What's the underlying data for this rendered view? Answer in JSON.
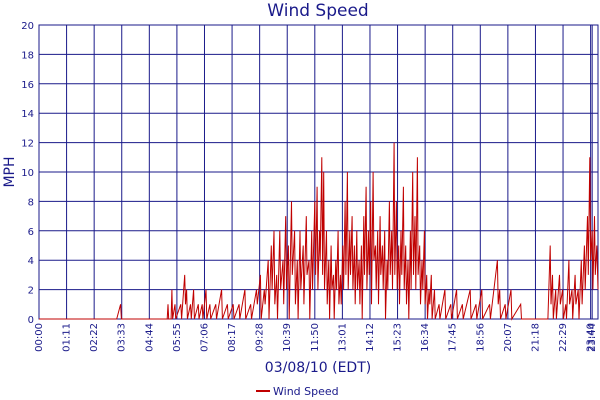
{
  "chart_data": {
    "type": "line",
    "title": "Wind Speed",
    "xlabel": "03/08/10 (EDT)",
    "ylabel": "MPH",
    "ylim": [
      0,
      20
    ],
    "yticks": [
      0,
      2,
      4,
      6,
      8,
      10,
      12,
      14,
      16,
      18,
      20
    ],
    "xlim_minutes": [
      0,
      1439
    ],
    "xticks": [
      "00:00",
      "01:11",
      "02:22",
      "03:33",
      "04:44",
      "05:55",
      "07:06",
      "08:17",
      "09:28",
      "10:39",
      "11:50",
      "13:01",
      "14:12",
      "15:23",
      "16:34",
      "17:45",
      "18:56",
      "20:07",
      "21:18",
      "22:29",
      "23:40",
      "23:44"
    ],
    "grid": true,
    "legend_position": "bottom-center",
    "series": [
      {
        "name": "Wind Speed",
        "color": "#c00000",
        "points": [
          [
            0,
            0
          ],
          [
            60,
            0
          ],
          [
            120,
            0
          ],
          [
            200,
            0
          ],
          [
            210,
            1
          ],
          [
            212,
            0
          ],
          [
            300,
            0
          ],
          [
            330,
            0
          ],
          [
            332,
            1
          ],
          [
            334,
            0
          ],
          [
            340,
            0
          ],
          [
            342,
            2
          ],
          [
            344,
            0
          ],
          [
            350,
            1
          ],
          [
            352,
            0
          ],
          [
            365,
            1
          ],
          [
            367,
            0
          ],
          [
            375,
            3
          ],
          [
            377,
            1
          ],
          [
            380,
            2
          ],
          [
            382,
            0
          ],
          [
            390,
            1
          ],
          [
            392,
            0
          ],
          [
            398,
            2
          ],
          [
            400,
            0
          ],
          [
            410,
            1
          ],
          [
            412,
            0
          ],
          [
            420,
            1
          ],
          [
            422,
            0
          ],
          [
            430,
            2
          ],
          [
            432,
            0
          ],
          [
            440,
            1
          ],
          [
            442,
            0
          ],
          [
            455,
            1
          ],
          [
            457,
            0
          ],
          [
            470,
            2
          ],
          [
            472,
            0
          ],
          [
            485,
            1
          ],
          [
            487,
            0
          ],
          [
            500,
            1
          ],
          [
            502,
            0
          ],
          [
            515,
            1
          ],
          [
            517,
            0
          ],
          [
            530,
            2
          ],
          [
            532,
            0
          ],
          [
            545,
            1
          ],
          [
            547,
            0
          ],
          [
            560,
            2
          ],
          [
            562,
            1
          ],
          [
            570,
            3
          ],
          [
            572,
            0
          ],
          [
            580,
            2
          ],
          [
            582,
            1
          ],
          [
            590,
            4
          ],
          [
            592,
            0
          ],
          [
            598,
            5
          ],
          [
            600,
            2
          ],
          [
            605,
            6
          ],
          [
            607,
            1
          ],
          [
            612,
            3
          ],
          [
            614,
            0
          ],
          [
            620,
            6
          ],
          [
            622,
            2
          ],
          [
            628,
            4
          ],
          [
            630,
            1
          ],
          [
            635,
            7
          ],
          [
            637,
            2
          ],
          [
            642,
            5
          ],
          [
            644,
            0
          ],
          [
            650,
            8
          ],
          [
            652,
            3
          ],
          [
            658,
            6
          ],
          [
            660,
            1
          ],
          [
            665,
            4
          ],
          [
            667,
            0
          ],
          [
            672,
            6
          ],
          [
            674,
            2
          ],
          [
            680,
            5
          ],
          [
            682,
            1
          ],
          [
            688,
            7
          ],
          [
            690,
            3
          ],
          [
            695,
            4
          ],
          [
            697,
            0
          ],
          [
            702,
            6
          ],
          [
            704,
            2
          ],
          [
            710,
            8
          ],
          [
            712,
            3
          ],
          [
            716,
            9
          ],
          [
            718,
            2
          ],
          [
            722,
            6
          ],
          [
            724,
            4
          ],
          [
            728,
            11
          ],
          [
            730,
            3
          ],
          [
            733,
            10
          ],
          [
            735,
            2
          ],
          [
            740,
            6
          ],
          [
            742,
            1
          ],
          [
            746,
            4
          ],
          [
            748,
            0
          ],
          [
            752,
            5
          ],
          [
            754,
            2
          ],
          [
            758,
            3
          ],
          [
            760,
            0
          ],
          [
            764,
            4
          ],
          [
            766,
            2
          ],
          [
            770,
            6
          ],
          [
            772,
            1
          ],
          [
            776,
            3
          ],
          [
            778,
            1
          ],
          [
            782,
            5
          ],
          [
            784,
            2
          ],
          [
            788,
            8
          ],
          [
            790,
            3
          ],
          [
            794,
            10
          ],
          [
            796,
            2
          ],
          [
            800,
            6
          ],
          [
            802,
            3
          ],
          [
            806,
            7
          ],
          [
            808,
            2
          ],
          [
            812,
            5
          ],
          [
            814,
            1
          ],
          [
            818,
            6
          ],
          [
            820,
            2
          ],
          [
            824,
            4
          ],
          [
            826,
            1
          ],
          [
            830,
            5
          ],
          [
            832,
            0
          ],
          [
            836,
            7
          ],
          [
            838,
            3
          ],
          [
            842,
            9
          ],
          [
            844,
            2
          ],
          [
            848,
            6
          ],
          [
            850,
            3
          ],
          [
            854,
            8
          ],
          [
            856,
            1
          ],
          [
            860,
            10
          ],
          [
            862,
            4
          ],
          [
            866,
            5
          ],
          [
            868,
            2
          ],
          [
            872,
            6
          ],
          [
            874,
            1
          ],
          [
            878,
            7
          ],
          [
            880,
            3
          ],
          [
            884,
            5
          ],
          [
            886,
            2
          ],
          [
            890,
            6
          ],
          [
            892,
            0
          ],
          [
            896,
            4
          ],
          [
            898,
            2
          ],
          [
            902,
            8
          ],
          [
            904,
            3
          ],
          [
            908,
            6
          ],
          [
            910,
            2
          ],
          [
            914,
            12
          ],
          [
            916,
            3
          ],
          [
            920,
            8
          ],
          [
            922,
            2
          ],
          [
            926,
            5
          ],
          [
            928,
            1
          ],
          [
            932,
            6
          ],
          [
            934,
            3
          ],
          [
            938,
            9
          ],
          [
            940,
            2
          ],
          [
            944,
            5
          ],
          [
            946,
            1
          ],
          [
            950,
            4
          ],
          [
            952,
            0
          ],
          [
            956,
            6
          ],
          [
            958,
            2
          ],
          [
            962,
            10
          ],
          [
            964,
            3
          ],
          [
            968,
            7
          ],
          [
            970,
            2
          ],
          [
            974,
            11
          ],
          [
            976,
            3
          ],
          [
            980,
            5
          ],
          [
            982,
            1
          ],
          [
            986,
            4
          ],
          [
            988,
            2
          ],
          [
            992,
            6
          ],
          [
            994,
            1
          ],
          [
            998,
            3
          ],
          [
            1000,
            0
          ],
          [
            1004,
            2
          ],
          [
            1006,
            1
          ],
          [
            1010,
            3
          ],
          [
            1012,
            0
          ],
          [
            1018,
            2
          ],
          [
            1020,
            0
          ],
          [
            1030,
            1
          ],
          [
            1032,
            0
          ],
          [
            1045,
            2
          ],
          [
            1047,
            0
          ],
          [
            1060,
            1
          ],
          [
            1062,
            0
          ],
          [
            1075,
            2
          ],
          [
            1077,
            0
          ],
          [
            1090,
            1
          ],
          [
            1092,
            0
          ],
          [
            1110,
            2
          ],
          [
            1112,
            0
          ],
          [
            1125,
            1
          ],
          [
            1127,
            0
          ],
          [
            1140,
            2
          ],
          [
            1142,
            0
          ],
          [
            1160,
            1
          ],
          [
            1162,
            0
          ],
          [
            1180,
            4
          ],
          [
            1182,
            1
          ],
          [
            1186,
            2
          ],
          [
            1188,
            0
          ],
          [
            1200,
            1
          ],
          [
            1202,
            0
          ],
          [
            1215,
            2
          ],
          [
            1217,
            0
          ],
          [
            1240,
            1
          ],
          [
            1242,
            0
          ],
          [
            1280,
            0
          ],
          [
            1310,
            0
          ],
          [
            1316,
            5
          ],
          [
            1318,
            1
          ],
          [
            1322,
            3
          ],
          [
            1324,
            0
          ],
          [
            1330,
            2
          ],
          [
            1332,
            0
          ],
          [
            1340,
            3
          ],
          [
            1342,
            1
          ],
          [
            1348,
            2
          ],
          [
            1350,
            0
          ],
          [
            1356,
            1
          ],
          [
            1358,
            0
          ],
          [
            1364,
            4
          ],
          [
            1366,
            1
          ],
          [
            1372,
            2
          ],
          [
            1374,
            0
          ],
          [
            1380,
            3
          ],
          [
            1382,
            1
          ],
          [
            1388,
            2
          ],
          [
            1390,
            0
          ],
          [
            1396,
            4
          ],
          [
            1398,
            1
          ],
          [
            1404,
            5
          ],
          [
            1406,
            2
          ],
          [
            1412,
            7
          ],
          [
            1414,
            3
          ],
          [
            1418,
            11
          ],
          [
            1420,
            4
          ],
          [
            1424,
            6
          ],
          [
            1426,
            2
          ],
          [
            1430,
            7
          ],
          [
            1432,
            3
          ],
          [
            1436,
            5
          ],
          [
            1439,
            2
          ]
        ]
      }
    ]
  }
}
